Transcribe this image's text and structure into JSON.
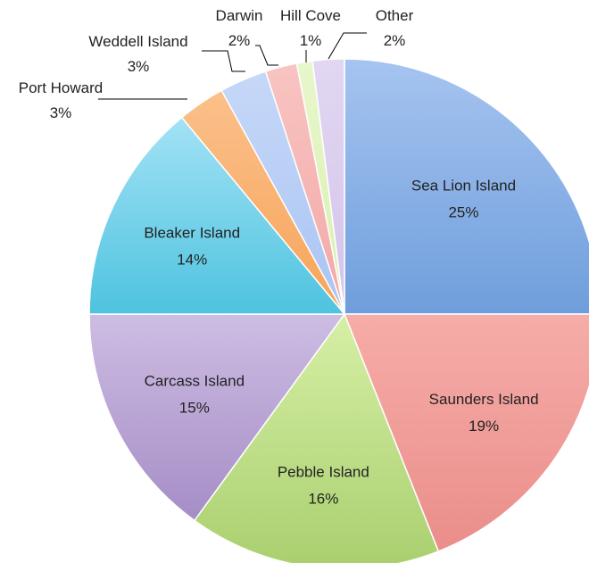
{
  "chart_data": {
    "type": "pie",
    "title": "",
    "start_angle_deg": 0,
    "direction": "clockwise",
    "slices": [
      {
        "label": "Sea Lion Island",
        "value": 25,
        "value_label": "25%",
        "color": "#6f9edc",
        "color_light": "#a6c4f0"
      },
      {
        "label": "Saunders Island",
        "value": 19,
        "value_label": "19%",
        "color": "#ea8e8a",
        "color_light": "#f6aca8"
      },
      {
        "label": "Pebble Island",
        "value": 16,
        "value_label": "16%",
        "color": "#a9cf6e",
        "color_light": "#d6efa6"
      },
      {
        "label": "Carcass Island",
        "value": 15,
        "value_label": "15%",
        "color": "#a58dc6",
        "color_light": "#cdbde3"
      },
      {
        "label": "Bleaker Island",
        "value": 14,
        "value_label": "14%",
        "color": "#4ec3df",
        "color_light": "#a3e2f5"
      },
      {
        "label": "Port Howard",
        "value": 3,
        "value_label": "3%",
        "color": "#f7a45a",
        "color_light": "#fbc08a"
      },
      {
        "label": "Weddell Island",
        "value": 3,
        "value_label": "3%",
        "color": "#a9c4f2",
        "color_light": "#c6d8f8"
      },
      {
        "label": "Darwin",
        "value": 2,
        "value_label": "2%",
        "color": "#f2a8a6",
        "color_light": "#f8c4c2"
      },
      {
        "label": "Hill Cove",
        "value": 1,
        "value_label": "1%",
        "color": "#d8f0b0",
        "color_light": "#e8f7cc"
      },
      {
        "label": "Other",
        "value": 2,
        "value_label": "2%",
        "color": "#d3c3ea",
        "color_light": "#e2d7f2"
      }
    ]
  }
}
